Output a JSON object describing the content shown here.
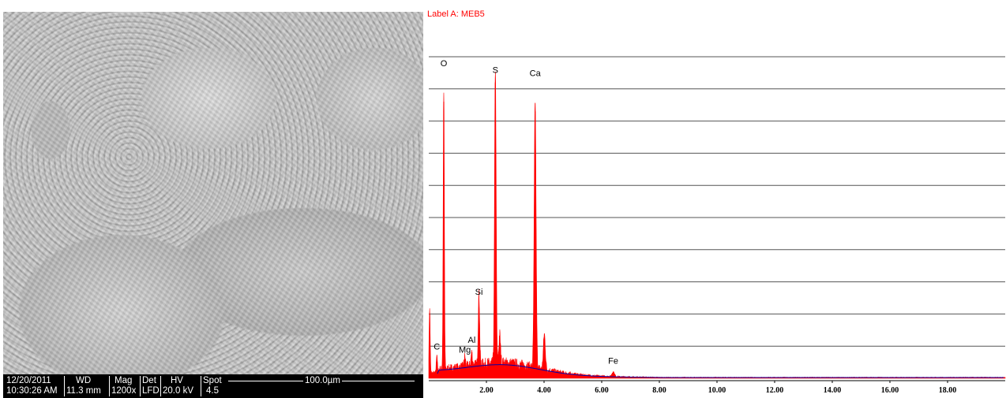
{
  "sem": {
    "date": "12/20/2011",
    "time": "10:30:26 AM",
    "wd_label": "WD",
    "wd_value": "11.3 mm",
    "mag_label": "Mag",
    "mag_value": "1200x",
    "det_label": "Det",
    "det_value": "LFD",
    "hv_label": "HV",
    "hv_value": "20.0 kV",
    "spot_label": "Spot",
    "spot_value": "4.5",
    "scale_bar": "100.0µm"
  },
  "chart_data": {
    "type": "line",
    "title": "Label A: MEB5",
    "xlabel": "",
    "ylabel": "",
    "xlim": [
      0,
      20
    ],
    "ylim": [
      0,
      100
    ],
    "x_ticks": [
      2,
      4,
      6,
      8,
      10,
      12,
      14,
      16,
      18
    ],
    "x_tick_labels": [
      "2.00",
      "4.00",
      "6.00",
      "8.00",
      "10.00",
      "12.00",
      "14.00",
      "16.00",
      "18.00"
    ],
    "y_gridlines": [
      10,
      20,
      30,
      40,
      50,
      60,
      70,
      80,
      90,
      100
    ],
    "grid": true,
    "series": [
      {
        "color": "#ff0000",
        "peaks": [
          {
            "x": 0.03,
            "y": 20
          },
          {
            "x": 0.28,
            "y": 6
          },
          {
            "x": 0.52,
            "y": 86
          },
          {
            "x": 1.25,
            "y": 3
          },
          {
            "x": 1.49,
            "y": 4
          },
          {
            "x": 1.74,
            "y": 22
          },
          {
            "x": 2.31,
            "y": 92
          },
          {
            "x": 2.46,
            "y": 9
          },
          {
            "x": 3.69,
            "y": 83
          },
          {
            "x": 4.01,
            "y": 11
          },
          {
            "x": 6.4,
            "y": 1.5
          }
        ]
      }
    ],
    "annotations": [
      {
        "label": "O",
        "x": 0.52,
        "y": 97
      },
      {
        "label": "S",
        "x": 2.31,
        "y": 95
      },
      {
        "label": "Ca",
        "x": 3.69,
        "y": 94
      },
      {
        "label": "Si",
        "x": 1.74,
        "y": 26
      },
      {
        "label": "Al",
        "x": 1.49,
        "y": 11
      },
      {
        "label": "Mg",
        "x": 1.25,
        "y": 8
      },
      {
        "label": "C",
        "x": 0.28,
        "y": 9
      },
      {
        "label": "Fe",
        "x": 6.4,
        "y": 4.5
      }
    ],
    "background_color": "#0000aa"
  }
}
